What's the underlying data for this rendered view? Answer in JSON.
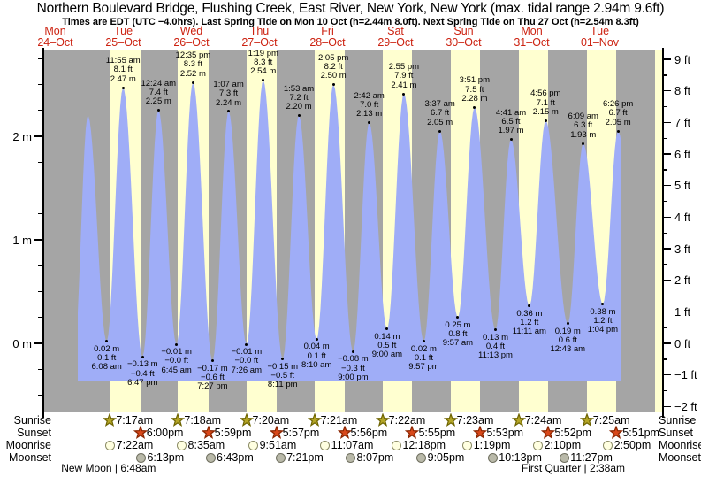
{
  "title": "Northern Boulevard Bridge, Flushing Creek, East River, New York, New York (max. tidal range 2.94m 9.6ft)",
  "subtitle": "Times are EDT (UTC −4.0hrs). Last Spring Tide on Mon 10 Oct (h=2.44m 8.0ft). Next Spring Tide on Thu 27 Oct (h=2.54m 8.3ft)",
  "rows": {
    "sunrise": "Sunrise",
    "sunset": "Sunset",
    "moonrise": "Moonrise",
    "moonset": "Moonset"
  },
  "colors": {
    "night_band": "#a5a5a5",
    "daylight_band": "#ffffd0",
    "water": "#9fadf7",
    "day_label_red": "#cc2211",
    "sunrise_star_fill": "#b3a526",
    "sunrise_star_stroke": "#6e6400",
    "sunset_star_fill": "#d8481a",
    "sunset_star_stroke": "#8a2500",
    "moonrise_fill": "#ffffe0",
    "moonrise_stroke": "#8b8b65",
    "moonset_fill": "#b9b9a9",
    "moonset_stroke": "#6f6f5f"
  },
  "chart_data": {
    "type": "line",
    "title": "Tide height curve, Mon 24 Oct – Tue 01 Nov",
    "ylabel_left": "meters",
    "ylabel_right": "feet",
    "ylim_m": [
      -0.67,
      2.83
    ],
    "left_axis_labels": [
      "2 m",
      "1 m",
      "0 m"
    ],
    "right_axis_labels": [
      "9 ft",
      "8 ft",
      "7 ft",
      "6 ft",
      "5 ft",
      "4 ft",
      "3 ft",
      "2 ft",
      "1 ft",
      "0 ft",
      "−1 ft",
      "−2 ft"
    ],
    "grid": false,
    "days": [
      {
        "name": "Mon",
        "date": "24–Oct"
      },
      {
        "name": "Tue",
        "date": "25–Oct"
      },
      {
        "name": "Wed",
        "date": "26–Oct"
      },
      {
        "name": "Thu",
        "date": "27–Oct"
      },
      {
        "name": "Fri",
        "date": "28–Oct"
      },
      {
        "name": "Sat",
        "date": "29–Oct"
      },
      {
        "name": "Sun",
        "date": "30–Oct"
      },
      {
        "name": "Mon",
        "date": "31–Oct"
      },
      {
        "name": "Tue",
        "date": "01–Nov"
      }
    ],
    "tide_events": [
      {
        "day": 1,
        "type": "L",
        "time": "6:08 am",
        "hour": 6.13,
        "m": 0.02,
        "m_label": "0.02 m",
        "ft_label": "0.1 ft"
      },
      {
        "day": 1,
        "type": "H",
        "time": "11:55 am",
        "hour": 11.92,
        "m": 2.47,
        "m_label": "2.47 m",
        "ft_label": "8.1 ft"
      },
      {
        "day": 1,
        "type": "L",
        "time": "6:47 pm",
        "hour": 18.78,
        "m": -0.13,
        "m_label": "−0.13 m",
        "ft_label": "−0.4 ft"
      },
      {
        "day": 2,
        "type": "H",
        "time": "12:24 am",
        "hour": 0.4,
        "m": 2.25,
        "m_label": "2.25 m",
        "ft_label": "7.4 ft"
      },
      {
        "day": 2,
        "type": "L",
        "time": "6:45 am",
        "hour": 6.75,
        "m": -0.01,
        "m_label": "−0.01 m",
        "ft_label": "−0.0 ft"
      },
      {
        "day": 2,
        "type": "H",
        "time": "12:35 pm",
        "hour": 12.58,
        "m": 2.52,
        "m_label": "2.52 m",
        "ft_label": "8.3 ft"
      },
      {
        "day": 2,
        "type": "L",
        "time": "7:27 pm",
        "hour": 19.45,
        "m": -0.17,
        "m_label": "−0.17 m",
        "ft_label": "−0.6 ft"
      },
      {
        "day": 3,
        "type": "H",
        "time": "1:07 am",
        "hour": 1.12,
        "m": 2.24,
        "m_label": "2.24 m",
        "ft_label": "7.3 ft"
      },
      {
        "day": 3,
        "type": "L",
        "time": "7:26 am",
        "hour": 7.43,
        "m": -0.01,
        "m_label": "−0.01 m",
        "ft_label": "−0.0 ft"
      },
      {
        "day": 3,
        "type": "H",
        "time": "1:19 pm",
        "hour": 13.32,
        "m": 2.54,
        "m_label": "2.54 m",
        "ft_label": "8.3 ft"
      },
      {
        "day": 3,
        "type": "L",
        "time": "8:11 pm",
        "hour": 20.18,
        "m": -0.15,
        "m_label": "−0.15 m",
        "ft_label": "−0.5 ft"
      },
      {
        "day": 4,
        "type": "H",
        "time": "1:53 am",
        "hour": 1.88,
        "m": 2.2,
        "m_label": "2.20 m",
        "ft_label": "7.2 ft"
      },
      {
        "day": 4,
        "type": "L",
        "time": "8:10 am",
        "hour": 8.17,
        "m": 0.04,
        "m_label": "0.04 m",
        "ft_label": "0.1 ft"
      },
      {
        "day": 4,
        "type": "H",
        "time": "2:05 pm",
        "hour": 14.08,
        "m": 2.5,
        "m_label": "2.50 m",
        "ft_label": "8.2 ft"
      },
      {
        "day": 4,
        "type": "L",
        "time": "9:00 pm",
        "hour": 21.0,
        "m": -0.08,
        "m_label": "−0.08 m",
        "ft_label": "−0.3 ft"
      },
      {
        "day": 5,
        "type": "H",
        "time": "2:42 am",
        "hour": 2.7,
        "m": 2.13,
        "m_label": "2.13 m",
        "ft_label": "7.0 ft"
      },
      {
        "day": 5,
        "type": "L",
        "time": "9:00 am",
        "hour": 9.0,
        "m": 0.14,
        "m_label": "0.14 m",
        "ft_label": "0.5 ft"
      },
      {
        "day": 5,
        "type": "H",
        "time": "2:55 pm",
        "hour": 14.92,
        "m": 2.41,
        "m_label": "2.41 m",
        "ft_label": "7.9 ft"
      },
      {
        "day": 5,
        "type": "L",
        "time": "9:57 pm",
        "hour": 21.95,
        "m": 0.02,
        "m_label": "0.02 m",
        "ft_label": "0.1 ft"
      },
      {
        "day": 6,
        "type": "H",
        "time": "3:37 am",
        "hour": 3.62,
        "m": 2.05,
        "m_label": "2.05 m",
        "ft_label": "6.7 ft"
      },
      {
        "day": 6,
        "type": "L",
        "time": "9:57 am",
        "hour": 9.95,
        "m": 0.25,
        "m_label": "0.25 m",
        "ft_label": "0.8 ft"
      },
      {
        "day": 6,
        "type": "H",
        "time": "3:51 pm",
        "hour": 15.85,
        "m": 2.28,
        "m_label": "2.28 m",
        "ft_label": "7.5 ft"
      },
      {
        "day": 6,
        "type": "L",
        "time": "11:13 pm",
        "hour": 23.22,
        "m": 0.13,
        "m_label": "0.13 m",
        "ft_label": "0.4 ft"
      },
      {
        "day": 7,
        "type": "H",
        "time": "4:41 am",
        "hour": 4.68,
        "m": 1.97,
        "m_label": "1.97 m",
        "ft_label": "6.5 ft"
      },
      {
        "day": 7,
        "type": "L",
        "time": "11:11 am",
        "hour": 11.18,
        "m": 0.36,
        "m_label": "0.36 m",
        "ft_label": "1.2 ft"
      },
      {
        "day": 7,
        "type": "H",
        "time": "4:56 pm",
        "hour": 16.93,
        "m": 2.15,
        "m_label": "2.15 m",
        "ft_label": "7.1 ft"
      },
      {
        "day": 8,
        "type": "L",
        "time": "12:43 am",
        "hour": 0.72,
        "m": 0.19,
        "m_label": "0.19 m",
        "ft_label": "0.6 ft"
      },
      {
        "day": 8,
        "type": "H",
        "time": "6:09 am",
        "hour": 6.15,
        "m": 1.93,
        "m_label": "1.93 m",
        "ft_label": "6.3 ft"
      },
      {
        "day": 8,
        "type": "L",
        "time": "1:04 pm",
        "hour": 13.07,
        "m": 0.38,
        "m_label": "0.38 m",
        "ft_label": "1.2 ft"
      },
      {
        "day": 8,
        "type": "H",
        "time": "6:26 pm",
        "hour": 18.43,
        "m": 2.05,
        "m_label": "2.05 m",
        "ft_label": "6.7 ft"
      }
    ],
    "curve_pre": [
      {
        "day": 0,
        "hour": 18.6,
        "m": -0.1
      },
      {
        "day": 0,
        "hour": 23.5,
        "m": 2.2
      }
    ],
    "curve_post": [
      {
        "day": 9,
        "hour": 1.8,
        "m": 0.2
      }
    ],
    "sun_moon": {
      "sunrise": [
        {
          "day": 1,
          "time": "7:17am",
          "hour": 7.28
        },
        {
          "day": 2,
          "time": "7:18am",
          "hour": 7.3
        },
        {
          "day": 3,
          "time": "7:20am",
          "hour": 7.33
        },
        {
          "day": 4,
          "time": "7:21am",
          "hour": 7.35
        },
        {
          "day": 5,
          "time": "7:22am",
          "hour": 7.37
        },
        {
          "day": 6,
          "time": "7:23am",
          "hour": 7.38
        },
        {
          "day": 7,
          "time": "7:24am",
          "hour": 7.4
        },
        {
          "day": 8,
          "time": "7:25am",
          "hour": 7.42
        }
      ],
      "sunset": [
        {
          "day": 1,
          "time": "6:00pm",
          "hour": 18.0
        },
        {
          "day": 2,
          "time": "5:59pm",
          "hour": 17.98
        },
        {
          "day": 3,
          "time": "5:57pm",
          "hour": 17.95
        },
        {
          "day": 4,
          "time": "5:56pm",
          "hour": 17.93
        },
        {
          "day": 5,
          "time": "5:55pm",
          "hour": 17.92
        },
        {
          "day": 6,
          "time": "5:53pm",
          "hour": 17.88
        },
        {
          "day": 7,
          "time": "5:52pm",
          "hour": 17.87
        },
        {
          "day": 8,
          "time": "5:51pm",
          "hour": 17.85
        }
      ],
      "moonrise": [
        {
          "day": 1,
          "time": "7:22am",
          "hour": 7.37
        },
        {
          "day": 2,
          "time": "8:35am",
          "hour": 8.58
        },
        {
          "day": 3,
          "time": "9:51am",
          "hour": 9.85
        },
        {
          "day": 4,
          "time": "11:07am",
          "hour": 11.12
        },
        {
          "day": 5,
          "time": "12:18pm",
          "hour": 12.3
        },
        {
          "day": 6,
          "time": "1:19pm",
          "hour": 13.32
        },
        {
          "day": 7,
          "time": "2:10pm",
          "hour": 14.17
        },
        {
          "day": 8,
          "time": "2:50pm",
          "hour": 14.83
        }
      ],
      "moonset": [
        {
          "day": 1,
          "time": "6:13pm",
          "hour": 18.22
        },
        {
          "day": 2,
          "time": "6:43pm",
          "hour": 18.72
        },
        {
          "day": 3,
          "time": "7:21pm",
          "hour": 19.35
        },
        {
          "day": 4,
          "time": "8:07pm",
          "hour": 20.12
        },
        {
          "day": 5,
          "time": "9:05pm",
          "hour": 21.08
        },
        {
          "day": 6,
          "time": "10:13pm",
          "hour": 22.22
        },
        {
          "day": 7,
          "time": "11:27pm",
          "hour": 23.45
        }
      ]
    },
    "extra_daylight": {
      "day": 9,
      "rise_hour": 7.43
    },
    "moon_phases": [
      {
        "label": "New Moon",
        "time": "6:48am",
        "day": 1,
        "hour": 6.8
      },
      {
        "label": "First Quarter",
        "time": "2:38am",
        "day": 8,
        "hour": 2.63
      }
    ]
  }
}
